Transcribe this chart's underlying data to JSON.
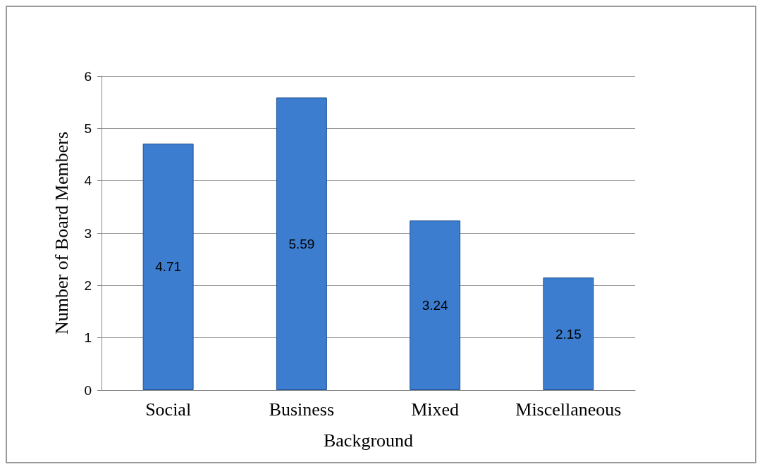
{
  "chart_data": {
    "type": "bar",
    "xlabel": "Background",
    "ylabel": "Number of Board Members",
    "categories": [
      "Social",
      "Business",
      "Mixed",
      "Miscellaneous"
    ],
    "values": [
      4.71,
      5.59,
      3.24,
      2.15
    ],
    "color": "#3c7dd0",
    "ylim": [
      0,
      6
    ],
    "yticks": [
      0,
      1,
      2,
      3,
      4,
      5,
      6
    ],
    "grid": "y",
    "data_labels": true
  }
}
